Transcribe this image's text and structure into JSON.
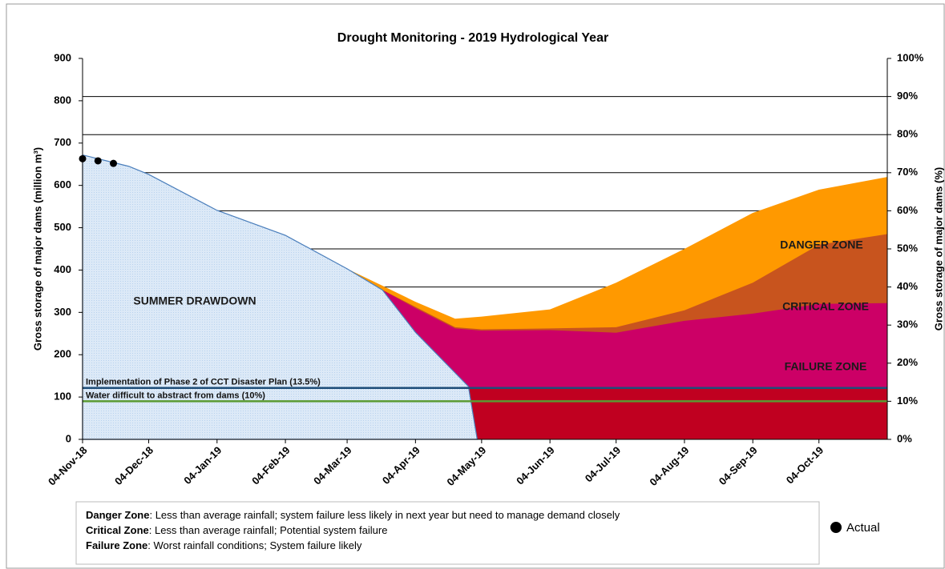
{
  "chart_data": {
    "type": "area",
    "title": "Drought Monitoring -  2019 Hydrological Year",
    "y_label": "Gross storage of major dams (million m³)",
    "y2_label": "Gross storage of major dams (%)",
    "xlim": [
      "2018-11-04",
      "2019-11-04"
    ],
    "xticks": [
      {
        "value": "2018-11-04",
        "label": "04-Nov-18"
      },
      {
        "value": "2018-12-04",
        "label": "04-Dec-18"
      },
      {
        "value": "2019-01-04",
        "label": "04-Jan-19"
      },
      {
        "value": "2019-02-04",
        "label": "04-Feb-19"
      },
      {
        "value": "2019-03-04",
        "label": "04-Mar-19"
      },
      {
        "value": "2019-04-04",
        "label": "04-Apr-19"
      },
      {
        "value": "2019-05-04",
        "label": "04-May-19"
      },
      {
        "value": "2019-06-04",
        "label": "04-Jun-19"
      },
      {
        "value": "2019-07-04",
        "label": "04-Jul-19"
      },
      {
        "value": "2019-08-04",
        "label": "04-Aug-19"
      },
      {
        "value": "2019-09-04",
        "label": "04-Sep-19"
      },
      {
        "value": "2019-10-04",
        "label": "04-Oct-19"
      }
    ],
    "ylim": [
      0,
      900
    ],
    "yticks": [
      0,
      100,
      200,
      300,
      400,
      500,
      600,
      700,
      800,
      900
    ],
    "y2lim": [
      0,
      100
    ],
    "y2ticks": [
      {
        "value": 0,
        "label": "0%"
      },
      {
        "value": 10,
        "label": "10%"
      },
      {
        "value": 20,
        "label": "20%"
      },
      {
        "value": 30,
        "label": "30%"
      },
      {
        "value": 40,
        "label": "40%"
      },
      {
        "value": 50,
        "label": "50%"
      },
      {
        "value": 60,
        "label": "60%"
      },
      {
        "value": 70,
        "label": "70%"
      },
      {
        "value": 80,
        "label": "80%"
      },
      {
        "value": 90,
        "label": "90%"
      },
      {
        "value": 100,
        "label": "100%"
      }
    ],
    "grid": true,
    "series": [
      {
        "name": "DANGER ZONE",
        "color": "#ff9900",
        "x": [
          "2019-03-04",
          "2019-03-20",
          "2019-04-04",
          "2019-04-22",
          "2019-05-04",
          "2019-06-04",
          "2019-07-04",
          "2019-08-04",
          "2019-09-04",
          "2019-10-04",
          "2019-11-04"
        ],
        "values": [
          403,
          363,
          325,
          285,
          290,
          307,
          370,
          450,
          535,
          590,
          620
        ]
      },
      {
        "name": "CRITICAL ZONE",
        "color": "#c8541e",
        "x": [
          "2019-03-20",
          "2019-04-04",
          "2019-04-22",
          "2019-05-04",
          "2019-06-04",
          "2019-07-04",
          "2019-08-04",
          "2019-09-04",
          "2019-10-04",
          "2019-11-04"
        ],
        "values": [
          353,
          313,
          265,
          260,
          262,
          265,
          305,
          370,
          460,
          485
        ]
      },
      {
        "name": "FAILURE ZONE",
        "color": "#cc0066",
        "x": [
          "2019-03-20",
          "2019-04-04",
          "2019-04-22",
          "2019-05-04",
          "2019-06-04",
          "2019-07-04",
          "2019-08-04",
          "2019-09-04",
          "2019-10-04",
          "2019-11-04"
        ],
        "values": [
          353,
          310,
          262,
          257,
          258,
          252,
          280,
          297,
          320,
          322
        ]
      },
      {
        "color": "#c00020",
        "x": [
          "2019-04-28",
          "2019-11-04"
        ],
        "values": [
          122,
          122
        ]
      },
      {
        "name": "SUMMER DRAWDOWN",
        "color": "#dce9f7",
        "x": [
          "2018-11-04",
          "2018-11-25",
          "2018-12-04",
          "2019-01-04",
          "2019-02-04",
          "2019-03-04",
          "2019-03-20",
          "2019-04-04",
          "2019-04-28",
          "2019-05-02"
        ],
        "values": [
          672,
          645,
          626,
          541,
          482,
          403,
          353,
          253,
          125,
          0
        ]
      }
    ],
    "thresholds": [
      {
        "label": "Implementation of Phase 2 of CCT Disaster Plan (13.5%)",
        "value": 13.5,
        "color": "#1f4e79",
        "axis": "y2"
      },
      {
        "label": "Water difficult to abstract from dams (10%)",
        "value": 10,
        "color": "#5a9a32",
        "axis": "y2"
      }
    ],
    "actual": {
      "name": "Actual",
      "color": "#000000",
      "x": [
        "2018-11-04",
        "2018-11-11",
        "2018-11-18"
      ],
      "values": [
        663,
        658,
        652
      ]
    },
    "notes": [
      {
        "term": "Danger Zone",
        "text": ": Less than average rainfall; system failure less likely in next year but need to manage demand closely"
      },
      {
        "term": "Critical Zone",
        "text": ": Less than average rainfall; Potential system failure"
      },
      {
        "term": "Failure Zone",
        "text": ": Worst rainfall conditions; System failure likely"
      }
    ]
  }
}
